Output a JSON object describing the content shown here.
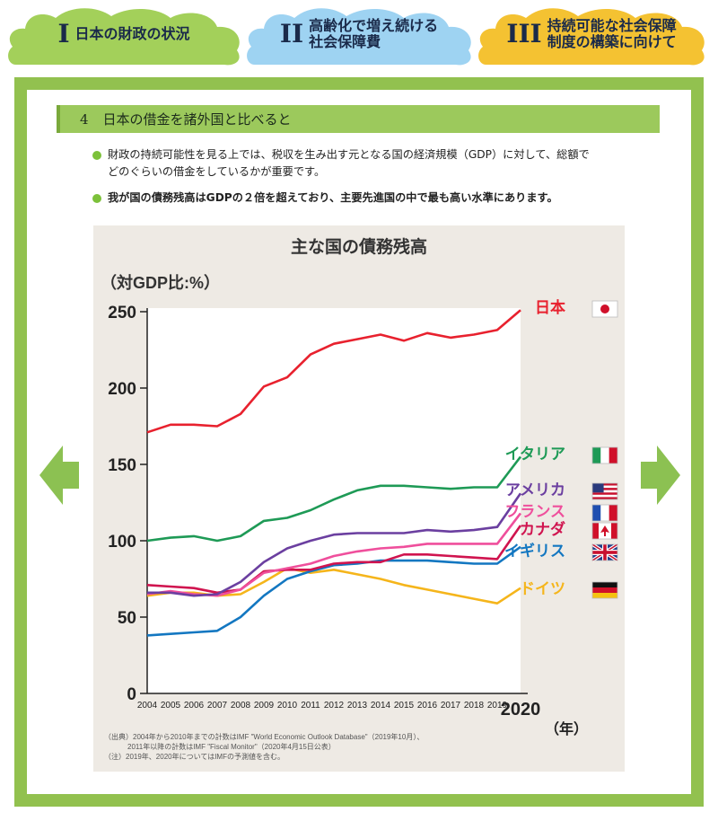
{
  "tabs": [
    {
      "numeral": "I",
      "label": "日本の財政の状況",
      "color": "#a3d05a"
    },
    {
      "numeral": "II",
      "label": "高齢化で増え続ける\n社会保障費",
      "color": "#9ed3f2"
    },
    {
      "numeral": "III",
      "label": "持続可能な社会保障\n制度の構築に向けて",
      "color": "#f4c232"
    }
  ],
  "section": {
    "number": "4",
    "title": "日本の借金を諸外国と比べると"
  },
  "bullets": [
    {
      "text": "財政の持続可能性を見る上では、税収を生み出す元となる国の経済規模（GDP）に対して、総額で\nどのぐらいの借金をしているかが重要です。",
      "bold": false
    },
    {
      "text": "我が国の債務残高はGDPの２倍を超えており、主要先進国の中で最も高い水準にあります。",
      "bold": true
    }
  ],
  "nav": {
    "prev_icon": "arrow-left-icon",
    "next_icon": "arrow-right-icon",
    "color": "#8cc152"
  },
  "chart_data": {
    "type": "line",
    "title": "主な国の債務残高",
    "ylabel": "（対GDP比:%）",
    "xlabel": "（年）",
    "ylim": [
      0,
      250
    ],
    "yticks": [
      0,
      50,
      100,
      150,
      200,
      250
    ],
    "x": [
      "2004",
      "2005",
      "2006",
      "2007",
      "2008",
      "2009",
      "2010",
      "2011",
      "2012",
      "2013",
      "2014",
      "2015",
      "2016",
      "2017",
      "2018",
      "2019",
      "2020"
    ],
    "series": [
      {
        "name": "日本",
        "color": "#e8212e",
        "flag": "japan",
        "values": [
          171,
          176,
          176,
          175,
          183,
          201,
          207,
          222,
          229,
          232,
          235,
          231,
          236,
          233,
          235,
          238,
          251
        ]
      },
      {
        "name": "イタリア",
        "color": "#1e9a56",
        "flag": "italy",
        "values": [
          100,
          102,
          103,
          100,
          103,
          113,
          115,
          120,
          127,
          133,
          136,
          136,
          135,
          134,
          135,
          135,
          155
        ]
      },
      {
        "name": "アメリカ",
        "color": "#6b3fa0",
        "flag": "usa",
        "values": [
          66,
          66,
          64,
          65,
          73,
          86,
          95,
          100,
          104,
          105,
          105,
          105,
          107,
          106,
          107,
          109,
          131
        ]
      },
      {
        "name": "フランス",
        "color": "#ef4f9c",
        "flag": "france",
        "values": [
          65,
          67,
          65,
          64,
          68,
          79,
          82,
          85,
          90,
          93,
          95,
          96,
          98,
          98,
          98,
          98,
          118
        ]
      },
      {
        "name": "カナダ",
        "color": "#d0144f",
        "flag": "canada",
        "values": [
          71,
          70,
          69,
          66,
          68,
          80,
          81,
          81,
          85,
          86,
          86,
          91,
          91,
          90,
          89,
          88,
          110
        ]
      },
      {
        "name": "イギリス",
        "color": "#1377c1",
        "flag": "uk",
        "values": [
          38,
          39,
          40,
          41,
          50,
          64,
          75,
          80,
          84,
          85,
          87,
          87,
          87,
          86,
          85,
          85,
          96
        ]
      },
      {
        "name": "ドイツ",
        "color": "#f5b51b",
        "flag": "germany",
        "values": [
          64,
          66,
          66,
          64,
          65,
          73,
          82,
          79,
          81,
          78,
          75,
          71,
          68,
          65,
          62,
          59,
          69
        ]
      }
    ],
    "source_lines": [
      "（出典）2004年から2010年までの計数はIMF \"World Economic Outlook Database\"（2019年10月）、",
      "2011年以降の計数はIMF \"Fiscal Monitor\"（2020年4月15日公表）",
      "（注）2019年、2020年についてはIMFの予測値を含む。"
    ]
  }
}
